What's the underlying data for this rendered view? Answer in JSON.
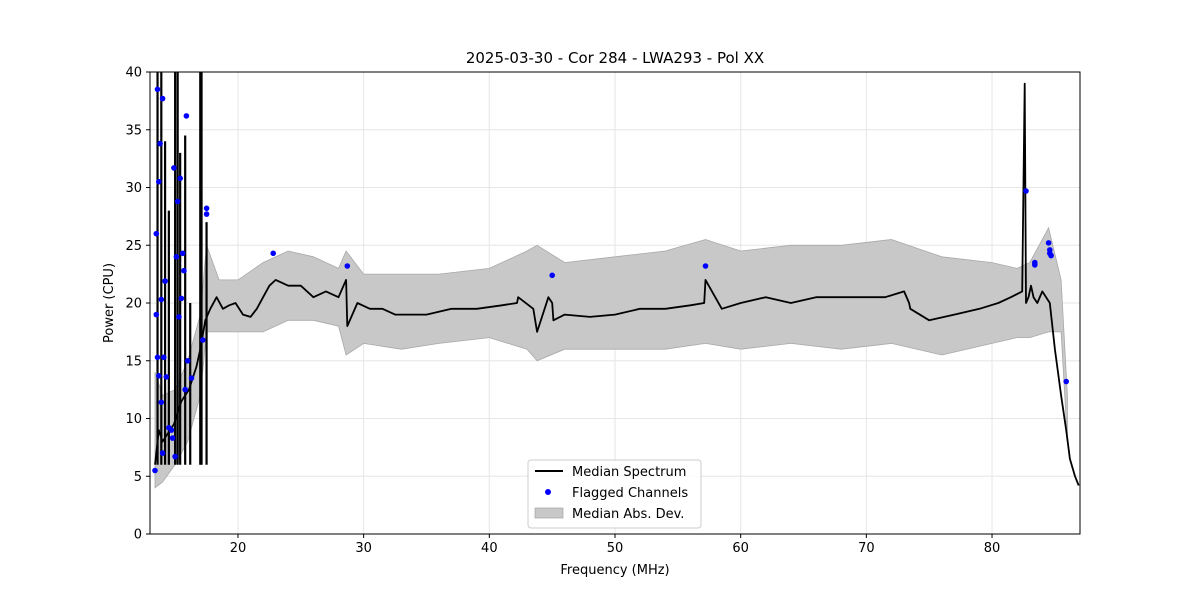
{
  "chart_data": {
    "type": "line",
    "title": "2025-03-30 - Cor 284 - LWA293 - Pol XX",
    "xlabel": "Frequency (MHz)",
    "ylabel": "Power (CPU)",
    "xlim": [
      13,
      87
    ],
    "ylim": [
      0,
      40
    ],
    "xticks": [
      20,
      30,
      40,
      50,
      60,
      70,
      80
    ],
    "yticks": [
      0,
      5,
      10,
      15,
      20,
      25,
      30,
      35,
      40
    ],
    "grid": true,
    "legend": {
      "position": "bottom-center",
      "entries": [
        "Median Spectrum",
        "Flagged Channels",
        "Median Abs. Dev."
      ]
    },
    "colors": {
      "median": "#000000",
      "flagged": "#0000ff",
      "mad": "#c8c8c8"
    },
    "median_spectrum": {
      "x": [
        13.4,
        13.7,
        14.0,
        14.3,
        14.6,
        14.9,
        15.2,
        15.5,
        15.8,
        16.1,
        16.4,
        16.7,
        17.0,
        17.4,
        17.8,
        18.3,
        18.8,
        19.3,
        19.8,
        20.4,
        21.0,
        21.5,
        22.0,
        22.5,
        23.0,
        24.0,
        25.0,
        26.0,
        27.0,
        28.0,
        28.6,
        28.7,
        29.5,
        30.5,
        31.5,
        32.5,
        33.5,
        35.0,
        37.0,
        39.0,
        41.0,
        42.2,
        42.3,
        43.5,
        43.8,
        44.7,
        45.0,
        45.1,
        46.0,
        48.0,
        50.0,
        52.0,
        54.0,
        56.0,
        57.1,
        57.2,
        58.5,
        60.0,
        62.0,
        64.0,
        66.0,
        68.0,
        70.0,
        71.5,
        73.0,
        73.4,
        73.5,
        75.0,
        77.0,
        79.0,
        80.5,
        81.5,
        82.4,
        82.6,
        82.7,
        82.9,
        83.1,
        83.3,
        83.6,
        84.0,
        84.3,
        84.6,
        85.0,
        85.5,
        85.9,
        86.2,
        86.6,
        86.9
      ],
      "y": [
        6.0,
        9.0,
        8.0,
        8.5,
        9.0,
        9.5,
        10.5,
        11.5,
        12.0,
        12.5,
        13.5,
        14.5,
        16.0,
        18.5,
        19.5,
        20.5,
        19.5,
        19.8,
        20.0,
        19.0,
        18.8,
        19.5,
        20.5,
        21.5,
        22.0,
        21.5,
        21.5,
        20.5,
        21.0,
        20.5,
        22.0,
        18.0,
        20.0,
        19.5,
        19.5,
        19.0,
        19.0,
        19.0,
        19.5,
        19.5,
        19.8,
        20.0,
        20.5,
        19.5,
        17.5,
        20.5,
        20.0,
        18.5,
        19.0,
        18.8,
        19.0,
        19.5,
        19.5,
        19.8,
        20.0,
        22.0,
        19.5,
        20.0,
        20.5,
        20.0,
        20.5,
        20.5,
        20.5,
        20.5,
        21.0,
        20.0,
        19.5,
        18.5,
        19.0,
        19.5,
        20.0,
        20.5,
        21.0,
        39.0,
        20.0,
        20.5,
        21.5,
        20.5,
        20.0,
        21.0,
        20.5,
        20.0,
        16.0,
        12.0,
        9.0,
        6.5,
        5.0,
        4.2
      ],
      "spikes_x": [
        13.6,
        13.9,
        14.2,
        14.5,
        15.0,
        15.2,
        15.4,
        15.8,
        16.2,
        17.0,
        17.1,
        17.5
      ],
      "spikes_y": [
        40.0,
        40.0,
        34.0,
        28.0,
        40.0,
        40.0,
        33.0,
        34.5,
        20.0,
        40.0,
        40.0,
        27.0
      ]
    },
    "median_abs_dev": {
      "x": [
        13.4,
        14.0,
        15.0,
        16.0,
        17.0,
        17.5,
        18.5,
        20.0,
        22.0,
        24.0,
        26.0,
        28.0,
        28.6,
        30.0,
        33.0,
        36.0,
        40.0,
        43.0,
        43.8,
        46.0,
        50.0,
        54.0,
        57.2,
        60.0,
        64.0,
        68.0,
        72.0,
        76.0,
        80.0,
        82.0,
        83.0,
        84.5,
        85.5,
        86.0
      ],
      "upper": [
        14.0,
        12.0,
        12.5,
        15.0,
        19.0,
        25.0,
        22.0,
        22.0,
        23.5,
        24.5,
        24.0,
        23.0,
        24.5,
        22.5,
        22.5,
        22.5,
        23.0,
        24.5,
        25.0,
        23.5,
        24.0,
        24.5,
        25.5,
        24.5,
        25.0,
        25.0,
        25.5,
        24.0,
        23.5,
        23.0,
        23.5,
        26.5,
        22.0,
        12.0
      ],
      "lower": [
        4.0,
        4.5,
        6.0,
        8.0,
        12.0,
        17.5,
        17.5,
        17.5,
        17.5,
        18.5,
        18.5,
        18.0,
        15.5,
        16.5,
        16.0,
        16.5,
        17.0,
        16.0,
        15.0,
        16.0,
        16.0,
        16.0,
        16.5,
        16.0,
        16.5,
        16.0,
        16.5,
        15.5,
        16.5,
        17.0,
        17.0,
        17.5,
        17.5,
        8.0
      ]
    },
    "flagged_channels": {
      "x": [
        13.4,
        13.5,
        13.6,
        13.7,
        13.8,
        13.9,
        14.0,
        13.5,
        13.6,
        13.7,
        13.9,
        14.0,
        14.1,
        14.2,
        14.3,
        14.5,
        14.7,
        14.8,
        14.9,
        15.0,
        15.1,
        15.2,
        15.3,
        15.4,
        15.5,
        15.6,
        15.7,
        15.8,
        15.9,
        16.0,
        16.3,
        17.2,
        17.5,
        17.5,
        22.8,
        28.7,
        45.0,
        57.2,
        82.7,
        83.4,
        83.4,
        84.5,
        84.6,
        84.6,
        84.7,
        85.9
      ],
      "y": [
        5.5,
        26.0,
        38.5,
        30.5,
        33.8,
        20.3,
        37.7,
        19.0,
        15.3,
        13.7,
        11.4,
        7.0,
        15.3,
        21.9,
        13.6,
        9.2,
        9.0,
        8.3,
        31.7,
        6.7,
        24.0,
        28.8,
        18.8,
        30.8,
        20.4,
        24.3,
        22.8,
        12.5,
        36.2,
        15.0,
        13.5,
        16.8,
        28.2,
        27.7,
        24.3,
        23.2,
        22.4,
        23.2,
        29.7,
        23.5,
        23.3,
        25.2,
        24.6,
        24.3,
        24.1,
        13.2
      ]
    }
  }
}
